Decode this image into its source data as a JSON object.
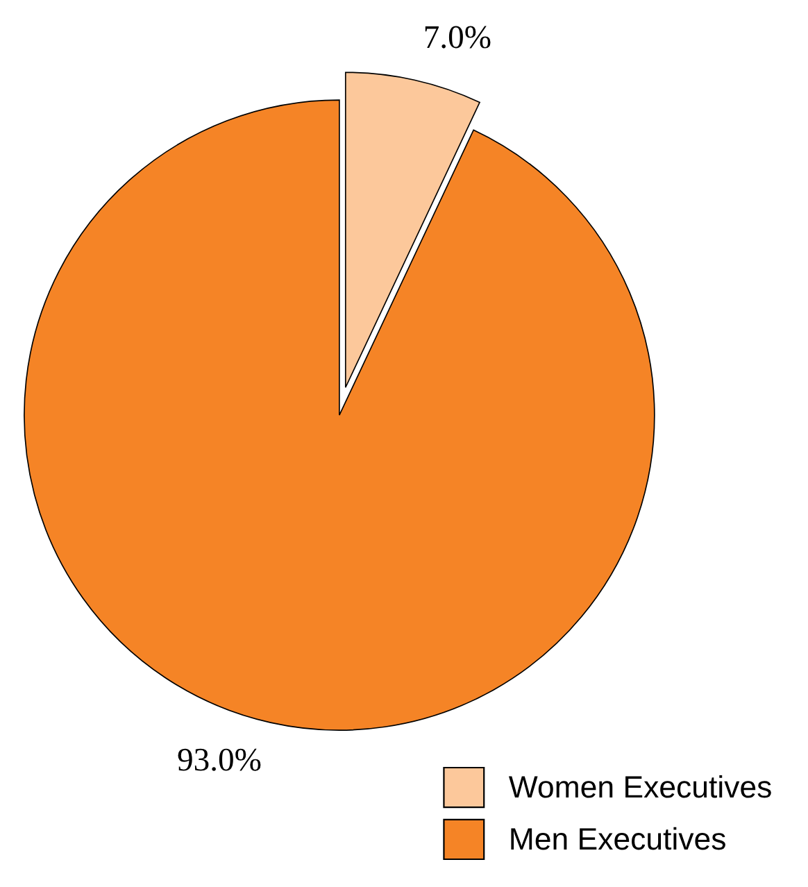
{
  "chart_data": {
    "type": "pie",
    "categories": [
      "Women Executives",
      "Men Executives"
    ],
    "values": [
      7.0,
      93.0
    ],
    "colors": [
      "#fcc89b",
      "#f58426"
    ],
    "value_labels": [
      "7.0%",
      "93.0%"
    ],
    "legend": "bottom right"
  }
}
